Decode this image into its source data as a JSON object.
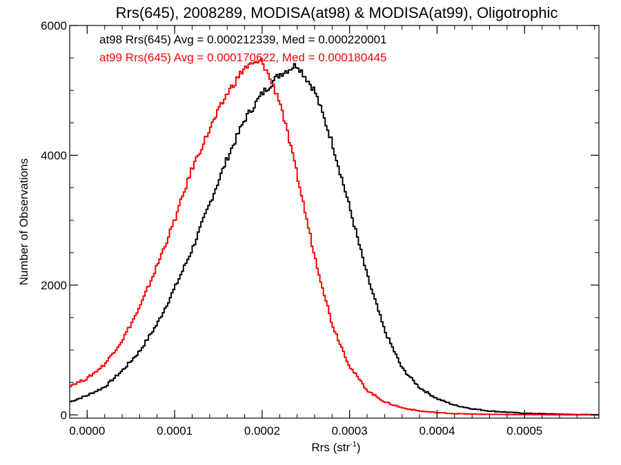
{
  "chart_data": {
    "type": "line",
    "title": "Rrs(645), 2008289, MODISA(at98) & MODISA(at99), Oligotrophic",
    "xlabel": "Rrs (str",
    "xlabel_sup": "-1",
    "xlabel_end": ")",
    "ylabel": "Number of Observations",
    "xlim": [
      -2e-05,
      0.000585
    ],
    "ylim": [
      -50,
      6000
    ],
    "xticks": [
      0.0,
      0.0001,
      0.0002,
      0.0003,
      0.0004,
      0.0005
    ],
    "xtick_labels": [
      "0.0000",
      "0.0001",
      "0.0002",
      "0.0003",
      "0.0004",
      "0.0005"
    ],
    "yticks": [
      0,
      2000,
      4000,
      6000
    ],
    "ytick_labels": [
      "0",
      "2000",
      "4000",
      "6000"
    ],
    "grid": false,
    "legend_position": "top-left",
    "series": [
      {
        "name": "at98",
        "color": "#000000",
        "label": "at98 Rrs(645) Avg = 0.000212339, Med = 0.000220001",
        "points": [
          [
            -2e-05,
            200
          ],
          [
            0.0,
            300
          ],
          [
            2e-05,
            430
          ],
          [
            4e-05,
            680
          ],
          [
            6e-05,
            980
          ],
          [
            8e-05,
            1400
          ],
          [
            0.0001,
            1950
          ],
          [
            0.00012,
            2550
          ],
          [
            0.00014,
            3250
          ],
          [
            0.00016,
            3950
          ],
          [
            0.00018,
            4550
          ],
          [
            0.0002,
            4950
          ],
          [
            0.00022,
            5250
          ],
          [
            0.00024,
            5400
          ],
          [
            0.00026,
            5000
          ],
          [
            0.00028,
            4200
          ],
          [
            0.0003,
            3200
          ],
          [
            0.00032,
            2150
          ],
          [
            0.00034,
            1300
          ],
          [
            0.00036,
            720
          ],
          [
            0.00038,
            420
          ],
          [
            0.0004,
            250
          ],
          [
            0.00042,
            150
          ],
          [
            0.00044,
            95
          ],
          [
            0.00046,
            60
          ],
          [
            0.0005,
            25
          ],
          [
            0.00055,
            8
          ],
          [
            0.000585,
            3
          ]
        ]
      },
      {
        "name": "at99",
        "color": "#ff0000",
        "label": "at99 Rrs(645) Avg = 0.000170622, Med = 0.000180445",
        "points": [
          [
            -2e-05,
            450
          ],
          [
            0.0,
            560
          ],
          [
            2e-05,
            780
          ],
          [
            4e-05,
            1150
          ],
          [
            6e-05,
            1650
          ],
          [
            8e-05,
            2300
          ],
          [
            0.0001,
            3000
          ],
          [
            0.00012,
            3800
          ],
          [
            0.00014,
            4400
          ],
          [
            0.00016,
            4950
          ],
          [
            0.00018,
            5350
          ],
          [
            0.0002,
            5450
          ],
          [
            0.00022,
            4850
          ],
          [
            0.00024,
            3700
          ],
          [
            0.00026,
            2450
          ],
          [
            0.00028,
            1400
          ],
          [
            0.0003,
            750
          ],
          [
            0.00032,
            380
          ],
          [
            0.00034,
            200
          ],
          [
            0.00036,
            110
          ],
          [
            0.00038,
            60
          ],
          [
            0.0004,
            35
          ],
          [
            0.00042,
            20
          ],
          [
            0.00045,
            10
          ],
          [
            0.0005,
            4
          ],
          [
            0.00055,
            1
          ],
          [
            0.000585,
            0
          ]
        ]
      }
    ]
  }
}
